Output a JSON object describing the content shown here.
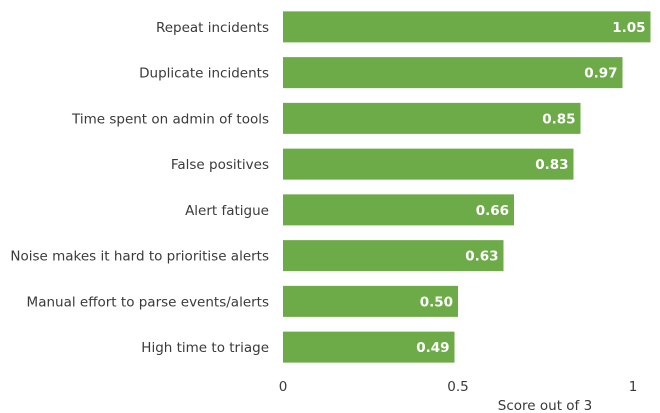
{
  "chart_data": {
    "type": "bar",
    "orientation": "horizontal",
    "categories": [
      "Repeat incidents",
      "Duplicate incidents",
      "Time spent on admin of tools",
      "False positives",
      "Alert fatigue",
      "Noise makes it hard to prioritise alerts",
      "Manual effort to parse events/alerts",
      "High time to triage"
    ],
    "values": [
      1.05,
      0.97,
      0.85,
      0.83,
      0.66,
      0.63,
      0.5,
      0.49
    ],
    "value_labels": [
      "1.05",
      "0.97",
      "0.85",
      "0.83",
      "0.66",
      "0.63",
      "0.50",
      "0.49"
    ],
    "color": "#6cab47",
    "xlabel": "Score out of 3",
    "xlim": [
      0,
      1.05
    ],
    "xticks": [
      0,
      0.5,
      1
    ],
    "grid": false
  }
}
